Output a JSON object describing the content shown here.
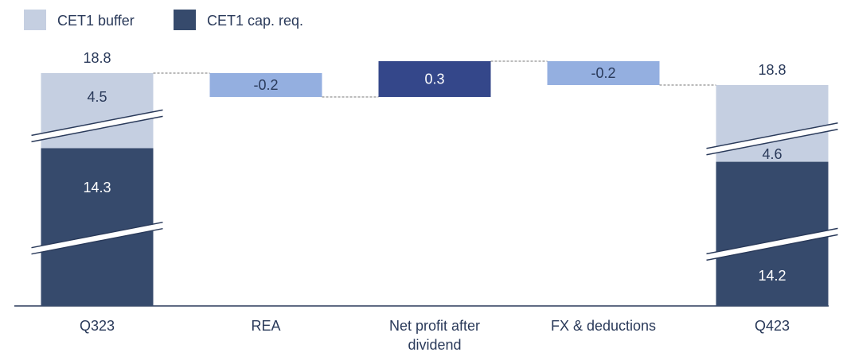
{
  "chart_data": {
    "type": "waterfall",
    "categories": [
      "Q323",
      "REA",
      "Net profit after dividend",
      "FX & deductions",
      "Q423"
    ],
    "series": [
      {
        "name": "CET1 buffer",
        "color": "#c5cfe1",
        "values": [
          4.5,
          null,
          null,
          null,
          4.6
        ]
      },
      {
        "name": "CET1 cap. req.",
        "color": "#364a6c",
        "values": [
          14.3,
          null,
          null,
          null,
          14.2
        ]
      }
    ],
    "totals": [
      18.8,
      null,
      null,
      null,
      18.8
    ],
    "changes": {
      "values": [
        null,
        -0.2,
        0.3,
        -0.2,
        null
      ],
      "positive_color": "#34478a",
      "negative_color": "#94afe0"
    },
    "legend": "top-left"
  }
}
